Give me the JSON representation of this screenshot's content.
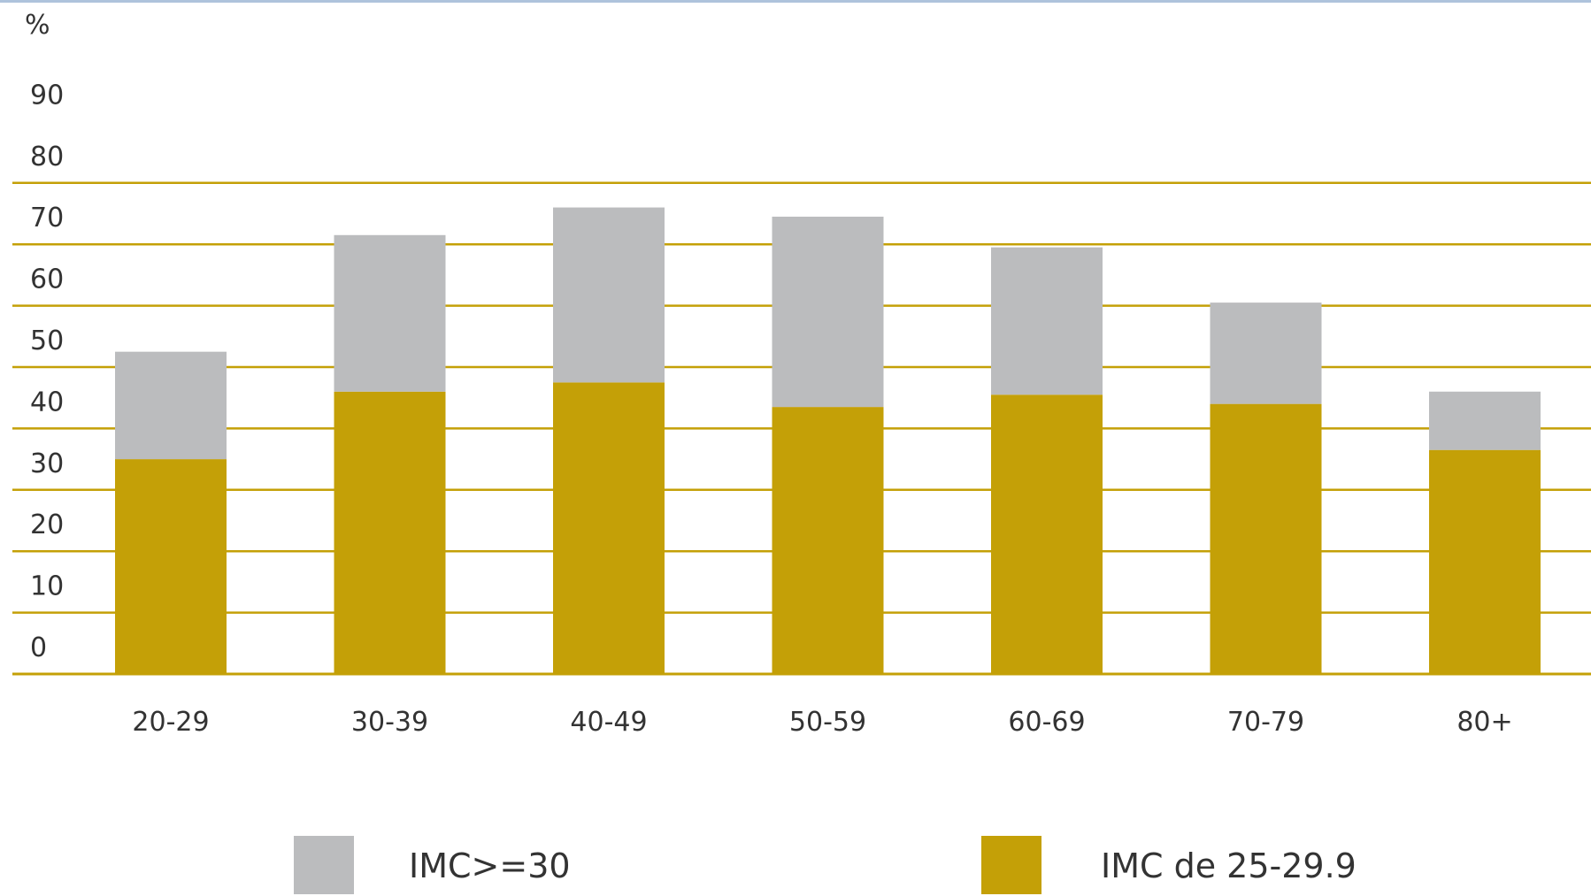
{
  "chart_data": {
    "type": "bar",
    "stacked": true,
    "ylabel": "%",
    "ylim": [
      0,
      90
    ],
    "yticks": [
      0,
      10,
      20,
      30,
      40,
      50,
      60,
      70,
      80,
      90
    ],
    "grid": true,
    "legend_position": "bottom",
    "categories": [
      "20-29",
      "30-39",
      "40-49",
      "50-59",
      "60-69",
      "70-79",
      "80+"
    ],
    "series": [
      {
        "name": "IMC de 25-29.9",
        "color": "#c4a007",
        "values": [
          35,
          46,
          47.5,
          43.5,
          45.5,
          44,
          36.5
        ]
      },
      {
        "name": "IMC>=30",
        "color": "#bbbcbe",
        "values": [
          17.5,
          25.5,
          28.5,
          31,
          24,
          16.5,
          9.5
        ]
      }
    ],
    "legend": [
      {
        "label": "IMC>=30",
        "color": "#bbbcbe"
      },
      {
        "label": "IMC de 25-29.9",
        "color": "#c4a007"
      }
    ]
  }
}
